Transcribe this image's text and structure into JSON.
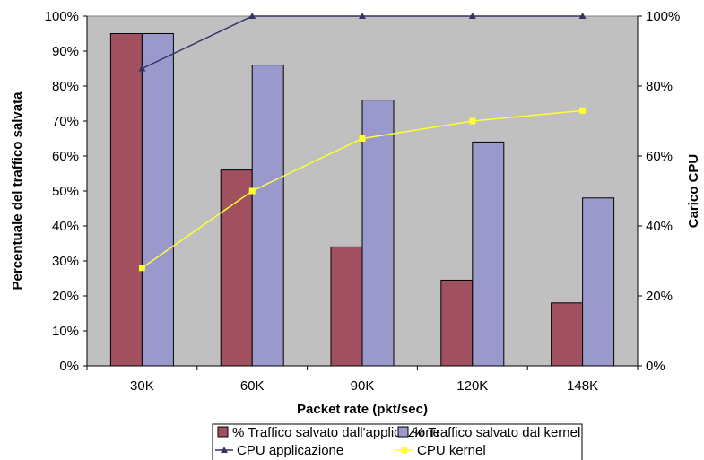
{
  "chart_data": {
    "type": "bar",
    "categories": [
      "30K",
      "60K",
      "90K",
      "120K",
      "148K"
    ],
    "xlabel": "Packet rate (pkt/sec)",
    "ylabel": "Percentuale del traffico salvata",
    "y2label": "Carico CPU",
    "ylim": [
      0,
      100
    ],
    "y2lim": [
      0,
      100
    ],
    "y_ticks": [
      "0%",
      "10%",
      "20%",
      "30%",
      "40%",
      "50%",
      "60%",
      "70%",
      "80%",
      "90%",
      "100%"
    ],
    "y2_ticks": [
      "0%",
      "20%",
      "40%",
      "60%",
      "80%",
      "100%"
    ],
    "grid": false,
    "plot_background": "#c0c0c0",
    "legend_position": "bottom",
    "series": [
      {
        "name": "% Traffico salvato dall'applicazione",
        "kind": "bar",
        "axis": "left",
        "color": "#a0505f",
        "values": [
          95,
          56,
          34,
          24.5,
          18
        ]
      },
      {
        "name": "% Traffico salvato dal kernel",
        "kind": "bar",
        "axis": "left",
        "color": "#9999cc",
        "values": [
          95,
          86,
          76,
          64,
          48
        ]
      },
      {
        "name": "CPU applicazione",
        "kind": "line",
        "axis": "right",
        "color": "#333366",
        "marker": "triangle",
        "values": [
          85,
          100,
          100,
          100,
          100
        ]
      },
      {
        "name": "CPU kernel",
        "kind": "line",
        "axis": "right",
        "color": "#ffff33",
        "marker": "square",
        "values": [
          28,
          50,
          65,
          70,
          73
        ]
      }
    ]
  }
}
